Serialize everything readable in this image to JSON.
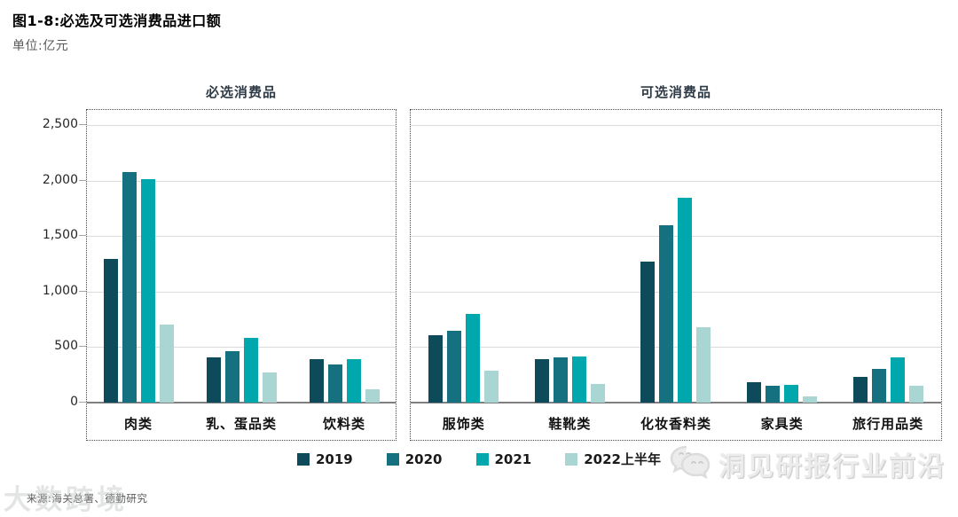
{
  "header": {
    "title": "图1-8:必选及可选消费品进口额",
    "unit_label": "单位:亿元"
  },
  "chart_data": {
    "type": "bar",
    "unit": "亿元",
    "grid": true,
    "legend_position": "bottom",
    "y_axis": {
      "min": 0,
      "max": 2500,
      "step": 500,
      "tick_labels": [
        "2,500",
        "2,000",
        "1,500",
        "1,000",
        "500",
        "0"
      ]
    },
    "series": [
      {
        "name": "2019",
        "color": "#0d4a5a"
      },
      {
        "name": "2020",
        "color": "#15707f"
      },
      {
        "name": "2021",
        "color": "#00a7ad"
      },
      {
        "name": "2022上半年",
        "color": "#a9d6d3"
      }
    ],
    "panels": [
      {
        "title": "必选消费品",
        "categories": [
          "肉类",
          "乳、蛋品类",
          "饮料类"
        ],
        "values": [
          [
            1290,
            2080,
            2015,
            700
          ],
          [
            410,
            460,
            585,
            270
          ],
          [
            395,
            340,
            390,
            120
          ]
        ]
      },
      {
        "title": "可选消费品",
        "categories": [
          "服饰类",
          "鞋靴类",
          "化妆香料类",
          "家具类",
          "旅行用品类"
        ],
        "values": [
          [
            610,
            650,
            795,
            285
          ],
          [
            390,
            410,
            415,
            165
          ],
          [
            1270,
            1600,
            1845,
            680
          ],
          [
            185,
            150,
            160,
            55
          ],
          [
            235,
            300,
            405,
            155
          ]
        ]
      }
    ]
  },
  "footer": {
    "source": "来源:海关总署、德勤研究",
    "watermark_left": "大数跨境",
    "watermark_right": "洞见研报行业前沿"
  }
}
